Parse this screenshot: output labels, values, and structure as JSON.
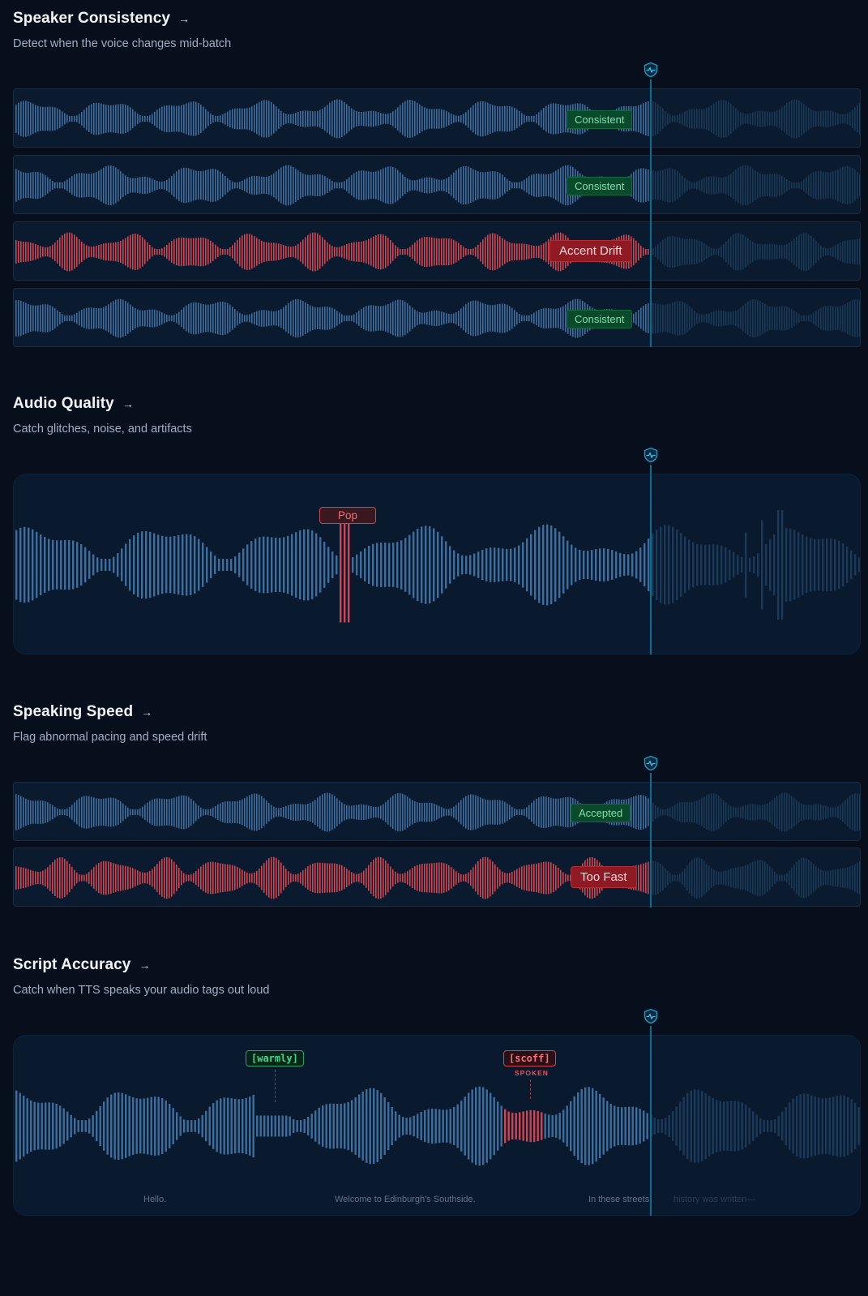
{
  "sections": {
    "speaker": {
      "title": "Speaker Consistency",
      "subtitle": "Detect when the voice changes mid-batch",
      "tracks": [
        {
          "status": "Consistent",
          "type": "ok"
        },
        {
          "status": "Consistent",
          "type": "ok"
        },
        {
          "status": "Accent Drift",
          "type": "bad"
        },
        {
          "status": "Consistent",
          "type": "ok"
        }
      ]
    },
    "quality": {
      "title": "Audio Quality",
      "subtitle": "Catch glitches, noise, and artifacts",
      "glitch_label": "Pop"
    },
    "speed": {
      "title": "Speaking Speed",
      "subtitle": "Flag abnormal pacing and speed drift",
      "tracks": [
        {
          "status": "Accepted",
          "type": "ok"
        },
        {
          "status": "Too Fast",
          "type": "bad"
        }
      ]
    },
    "script": {
      "title": "Script Accuracy",
      "subtitle": "Catch when TTS speaks your audio tags out loud",
      "tag_ok": "[warmly]",
      "tag_bad": "[scoff]",
      "tag_bad_note": "SPOKEN",
      "captions": [
        "Hello.",
        "Welcome to Edinburgh's Southside.",
        "In these streets,",
        "history was written—"
      ]
    }
  },
  "icons": {
    "arrow": "arrow-right-icon",
    "playhead": "shield-pulse-icon"
  },
  "colors": {
    "background": "#070e1c",
    "wave_played": "#3d6e9e",
    "wave_unplayed": "#1e3f5f",
    "wave_error": "#d14450",
    "playhead": "#0b6e90",
    "ok": "#0a4a2c",
    "bad": "#8e1b24"
  },
  "playhead_fraction": 0.75
}
